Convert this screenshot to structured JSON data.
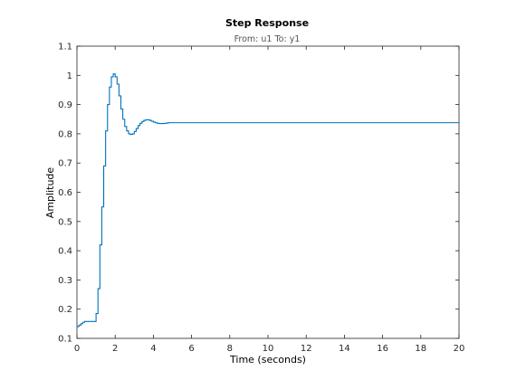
{
  "chart_data": {
    "type": "line",
    "title": "Step Response",
    "subtitle": "From: u1  To: y1",
    "xlabel": "Time (seconds)",
    "ylabel": "Amplitude",
    "xlim": [
      0,
      20
    ],
    "ylim": [
      0.1,
      1.1
    ],
    "grid": false,
    "legend": "none",
    "line_color": "#0072bd",
    "xticks": [
      "0",
      "2",
      "4",
      "6",
      "8",
      "10",
      "12",
      "14",
      "16",
      "18",
      "20"
    ],
    "yticks": [
      "0.1",
      "0.2",
      "0.3",
      "0.4",
      "0.5",
      "0.6",
      "0.7",
      "0.8",
      "0.9",
      "1",
      "1.1"
    ],
    "series": [
      {
        "style": "stairs",
        "x": [
          0,
          0.1,
          0.2,
          0.3,
          0.4,
          0.5,
          0.6,
          0.7,
          0.8,
          0.9,
          1.0,
          1.1,
          1.2,
          1.3,
          1.4,
          1.5,
          1.6,
          1.7,
          1.8,
          1.9,
          2.0,
          2.1,
          2.2,
          2.3,
          2.4,
          2.5,
          2.6,
          2.7,
          2.8,
          2.9,
          3.0,
          3.1,
          3.2,
          3.3,
          3.4,
          3.5,
          3.6,
          3.7,
          3.8,
          3.9,
          4.0,
          4.1,
          4.2,
          4.3,
          4.4,
          4.5,
          4.6,
          4.7,
          4.8,
          4.9,
          5.0,
          5.2,
          5.4,
          6,
          8,
          10,
          12,
          14,
          16,
          18,
          20
        ],
        "y": [
          0.14,
          0.145,
          0.15,
          0.155,
          0.158,
          0.158,
          0.158,
          0.158,
          0.158,
          0.158,
          0.185,
          0.27,
          0.42,
          0.55,
          0.69,
          0.81,
          0.9,
          0.96,
          0.995,
          1.005,
          0.995,
          0.97,
          0.93,
          0.885,
          0.85,
          0.825,
          0.81,
          0.8,
          0.798,
          0.8,
          0.808,
          0.818,
          0.828,
          0.836,
          0.842,
          0.846,
          0.848,
          0.848,
          0.846,
          0.843,
          0.84,
          0.838,
          0.836,
          0.835,
          0.835,
          0.835,
          0.836,
          0.837,
          0.838,
          0.838,
          0.838,
          0.838,
          0.838,
          0.838,
          0.838,
          0.838,
          0.838,
          0.838,
          0.838,
          0.838,
          0.838
        ]
      }
    ]
  }
}
